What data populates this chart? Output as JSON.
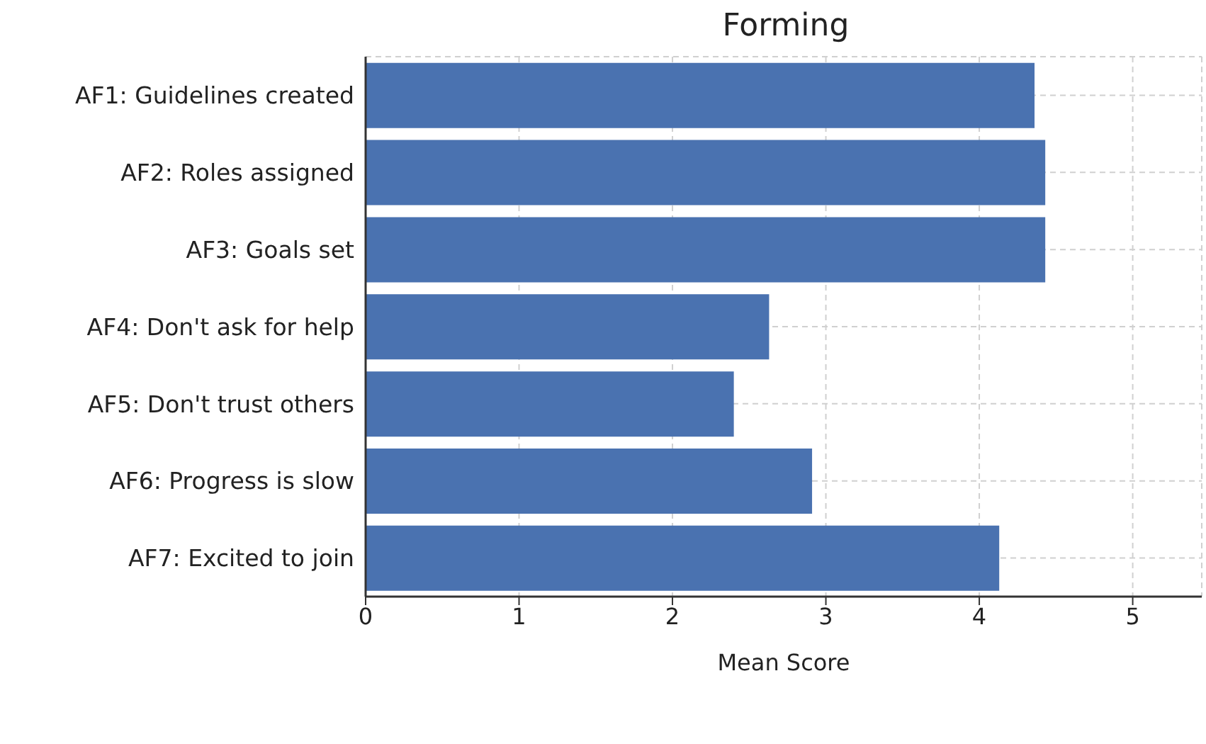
{
  "chart_data": {
    "type": "bar",
    "orientation": "horizontal",
    "title": "Forming",
    "xlabel": "Mean Score",
    "categories": [
      "AF1: Guidelines created",
      "AF2: Roles assigned",
      "AF3: Goals set",
      "AF4: Don't ask for help",
      "AF5: Don't trust others",
      "AF6: Progress is slow",
      "AF7: Excited to join"
    ],
    "values": [
      4.36,
      4.43,
      4.43,
      2.63,
      2.4,
      2.91,
      4.13
    ],
    "color": "#4a72b0",
    "xlim": [
      0,
      5.45
    ],
    "xticks": [
      0,
      1,
      2,
      3,
      4,
      5
    ],
    "grid": true
  }
}
